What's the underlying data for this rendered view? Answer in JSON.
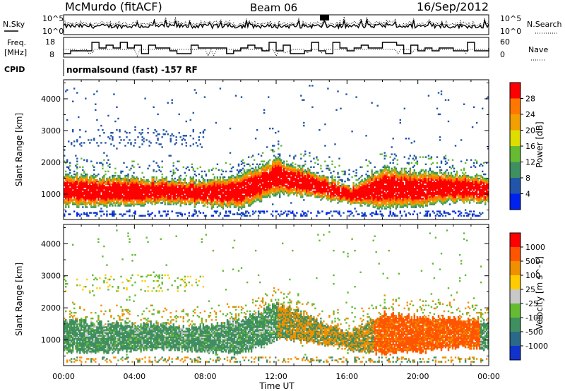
{
  "header": {
    "station": "McMurdo (fitACF)",
    "beam": "Beam 06",
    "date": "16/Sep/2012"
  },
  "noise_panel": {
    "left_label": "N.Sky",
    "right_label": "N.Search",
    "left_ticks": [
      "10^5",
      "10^0"
    ],
    "right_ticks": [
      "10^5",
      "10^0"
    ]
  },
  "freq_panel": {
    "left_label_1": "Freq.",
    "left_label_2": "[MHz]",
    "right_label": "Nave",
    "left_ticks": [
      "18",
      "8"
    ],
    "right_ticks": [
      "60",
      "0"
    ]
  },
  "cpid": {
    "label": "CPID",
    "value": "normalsound (fast) -157 RF"
  },
  "chart_data": [
    {
      "type": "heatmap",
      "quantity": "Power",
      "ylabel": "Slant Range [km]",
      "ytick_labels": [
        "1000",
        "2000",
        "3000",
        "4000"
      ],
      "ylim": [
        200,
        4600
      ],
      "colorbar_label": "Power [dB]",
      "colorbar_ticks": [
        "4",
        "8",
        "12",
        "16",
        "20",
        "24",
        "28"
      ],
      "colors": [
        "#0022ee",
        "#2255aa",
        "#3f8f60",
        "#66bb33",
        "#dddd00",
        "#f0a000",
        "#ff7700",
        "#ff0000"
      ],
      "main_band_km": [
        {
          "t": 0,
          "lo": 600,
          "hi": 1600
        },
        {
          "t": 2,
          "lo": 600,
          "hi": 1500
        },
        {
          "t": 4,
          "lo": 650,
          "hi": 1500
        },
        {
          "t": 6,
          "lo": 700,
          "hi": 1450
        },
        {
          "t": 8,
          "lo": 600,
          "hi": 1400
        },
        {
          "t": 10,
          "lo": 550,
          "hi": 1600
        },
        {
          "t": 12,
          "lo": 1000,
          "hi": 2100
        },
        {
          "t": 14,
          "lo": 900,
          "hi": 1700
        },
        {
          "t": 16,
          "lo": 700,
          "hi": 1200
        },
        {
          "t": 18,
          "lo": 550,
          "hi": 1800
        },
        {
          "t": 20,
          "lo": 600,
          "hi": 1700
        },
        {
          "t": 22,
          "lo": 750,
          "hi": 1650
        },
        {
          "t": 24,
          "lo": 700,
          "hi": 1550
        }
      ]
    },
    {
      "type": "heatmap",
      "quantity": "Velocity",
      "ylabel": "Slant Range [km]",
      "ytick_labels": [
        "1000",
        "2000",
        "3000",
        "4000"
      ],
      "ylim": [
        200,
        4600
      ],
      "colorbar_label": "Velocity [m s^-1]",
      "colorbar_ticks": [
        "1000",
        "500",
        "100",
        "25",
        "-25",
        "-100",
        "-500",
        "-1000"
      ],
      "colors": [
        "#1133cc",
        "#2a6a88",
        "#3f8f60",
        "#66bb33",
        "#c8c8c8",
        "#ffcc00",
        "#f09000",
        "#ff5500",
        "#ff0000"
      ],
      "main_band_km": [
        {
          "t": 0,
          "lo": 600,
          "hi": 1600
        },
        {
          "t": 2,
          "lo": 600,
          "hi": 1500
        },
        {
          "t": 4,
          "lo": 650,
          "hi": 1500
        },
        {
          "t": 6,
          "lo": 700,
          "hi": 1450
        },
        {
          "t": 8,
          "lo": 600,
          "hi": 1400
        },
        {
          "t": 10,
          "lo": 550,
          "hi": 1600
        },
        {
          "t": 12,
          "lo": 1000,
          "hi": 2100
        },
        {
          "t": 14,
          "lo": 900,
          "hi": 1700
        },
        {
          "t": 16,
          "lo": 700,
          "hi": 1200
        },
        {
          "t": 18,
          "lo": 550,
          "hi": 1800
        },
        {
          "t": 20,
          "lo": 600,
          "hi": 1700
        },
        {
          "t": 22,
          "lo": 750,
          "hi": 1650
        },
        {
          "t": 24,
          "lo": 700,
          "hi": 1550
        }
      ]
    }
  ],
  "xaxis": {
    "label": "Time UT",
    "ticks": [
      "00:00",
      "04:00",
      "08:00",
      "12:00",
      "16:00",
      "20:00",
      "00:00"
    ]
  }
}
